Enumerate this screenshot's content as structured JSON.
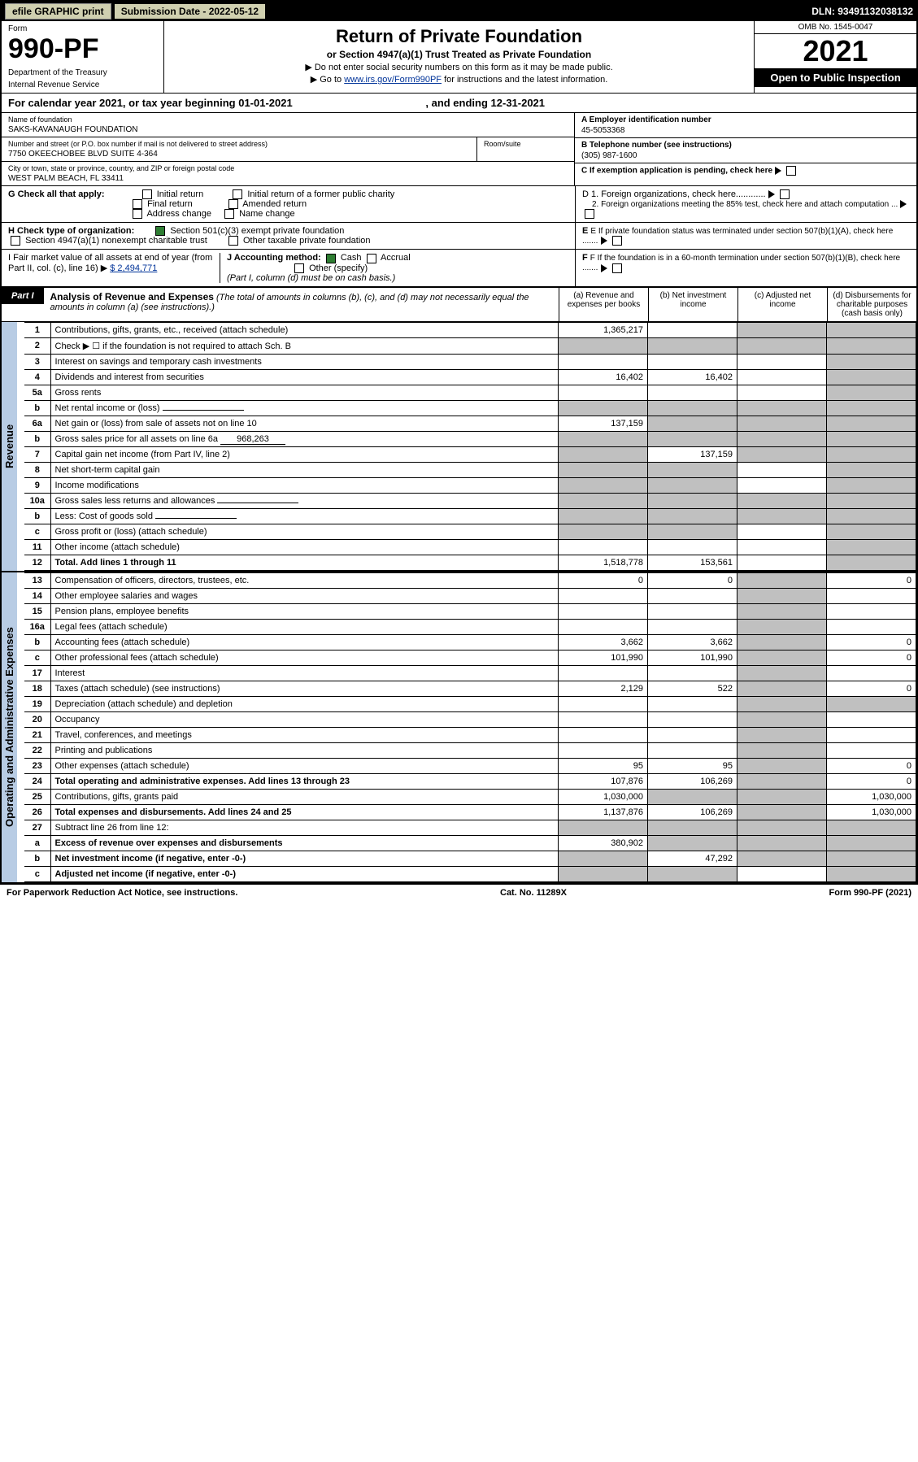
{
  "topbar": {
    "efile": "efile GRAPHIC print",
    "sub_label": "Submission Date - 2022-05-12",
    "dln": "DLN: 93491132038132"
  },
  "header": {
    "form_label": "Form",
    "form_number": "990-PF",
    "dept1": "Department of the Treasury",
    "dept2": "Internal Revenue Service",
    "title": "Return of Private Foundation",
    "subtitle": "or Section 4947(a)(1) Trust Treated as Private Foundation",
    "instr1": "▶ Do not enter social security numbers on this form as it may be made public.",
    "instr2a": "▶ Go to ",
    "instr2_link": "www.irs.gov/Form990PF",
    "instr2b": " for instructions and the latest information.",
    "omb": "OMB No. 1545-0047",
    "year": "2021",
    "open": "Open to Public Inspection"
  },
  "cal_year": {
    "text": "For calendar year 2021, or tax year beginning 01-01-2021",
    "end": ", and ending 12-31-2021"
  },
  "entity": {
    "name_label": "Name of foundation",
    "name": "SAKS-KAVANAUGH FOUNDATION",
    "addr_label": "Number and street (or P.O. box number if mail is not delivered to street address)",
    "addr": "7750 OKEECHOBEE BLVD SUITE 4-364",
    "room_label": "Room/suite",
    "city_label": "City or town, state or province, country, and ZIP or foreign postal code",
    "city": "WEST PALM BEACH, FL  33411",
    "ein_label": "A Employer identification number",
    "ein": "45-5053368",
    "phone_label": "B Telephone number (see instructions)",
    "phone": "(305) 987-1600",
    "c_label": "C If exemption application is pending, check here",
    "d1": "D 1. Foreign organizations, check here............",
    "d2": "2. Foreign organizations meeting the 85% test, check here and attach computation ...",
    "e_label": "E  If private foundation status was terminated under section 507(b)(1)(A), check here .......",
    "f_label": "F  If the foundation is in a 60-month termination under section 507(b)(1)(B), check here .......",
    "g_label": "G Check all that apply:",
    "g_initial": "Initial return",
    "g_initial_former": "Initial return of a former public charity",
    "g_final": "Final return",
    "g_amended": "Amended return",
    "g_addr_change": "Address change",
    "g_name_change": "Name change",
    "h_label": "H Check type of organization:",
    "h_501c3": "Section 501(c)(3) exempt private foundation",
    "h_4947": "Section 4947(a)(1) nonexempt charitable trust",
    "h_other_tax": "Other taxable private foundation",
    "i_label": "I Fair market value of all assets at end of year (from Part II, col. (c), line 16) ▶",
    "i_value": "$  2,494,771",
    "j_label": "J Accounting method:",
    "j_cash": "Cash",
    "j_accrual": "Accrual",
    "j_other": "Other (specify)",
    "j_note": "(Part I, column (d) must be on cash basis.)"
  },
  "part1": {
    "label": "Part I",
    "title": "Analysis of Revenue and Expenses",
    "title_note": " (The total of amounts in columns (b), (c), and (d) may not necessarily equal the amounts in column (a) (see instructions).)",
    "col_a": "(a)   Revenue and expenses per books",
    "col_b": "(b)   Net investment income",
    "col_c": "(c)   Adjusted net income",
    "col_d": "(d)   Disbursements for charitable purposes (cash basis only)"
  },
  "sides": {
    "revenue": "Revenue",
    "expenses": "Operating and Administrative Expenses"
  },
  "rows": [
    {
      "n": "1",
      "desc": "Contributions, gifts, grants, etc., received (attach schedule)",
      "a": "1,365,217",
      "b": "",
      "c": "grey",
      "d": "grey"
    },
    {
      "n": "2",
      "desc": "Check ▶ ☐ if the foundation is not required to attach Sch. B",
      "a": "grey",
      "b": "grey",
      "c": "grey",
      "d": "grey",
      "nobold": true
    },
    {
      "n": "3",
      "desc": "Interest on savings and temporary cash investments",
      "a": "",
      "b": "",
      "c": "",
      "d": "grey"
    },
    {
      "n": "4",
      "desc": "Dividends and interest from securities",
      "a": "16,402",
      "b": "16,402",
      "c": "",
      "d": "grey"
    },
    {
      "n": "5a",
      "desc": "Gross rents",
      "a": "",
      "b": "",
      "c": "",
      "d": "grey"
    },
    {
      "n": "b",
      "desc": "Net rental income or (loss)",
      "a": "grey",
      "b": "grey",
      "c": "grey",
      "d": "grey",
      "inline": true
    },
    {
      "n": "6a",
      "desc": "Net gain or (loss) from sale of assets not on line 10",
      "a": "137,159",
      "b": "grey",
      "c": "grey",
      "d": "grey"
    },
    {
      "n": "b",
      "desc": "Gross sales price for all assets on line 6a",
      "a": "grey",
      "b": "grey",
      "c": "grey",
      "d": "grey",
      "inline": true,
      "inlineval": "968,263"
    },
    {
      "n": "7",
      "desc": "Capital gain net income (from Part IV, line 2)",
      "a": "grey",
      "b": "137,159",
      "c": "grey",
      "d": "grey"
    },
    {
      "n": "8",
      "desc": "Net short-term capital gain",
      "a": "grey",
      "b": "grey",
      "c": "",
      "d": "grey"
    },
    {
      "n": "9",
      "desc": "Income modifications",
      "a": "grey",
      "b": "grey",
      "c": "",
      "d": "grey"
    },
    {
      "n": "10a",
      "desc": "Gross sales less returns and allowances",
      "a": "grey",
      "b": "grey",
      "c": "grey",
      "d": "grey",
      "inline": true
    },
    {
      "n": "b",
      "desc": "Less: Cost of goods sold",
      "a": "grey",
      "b": "grey",
      "c": "grey",
      "d": "grey",
      "inline": true
    },
    {
      "n": "c",
      "desc": "Gross profit or (loss) (attach schedule)",
      "a": "grey",
      "b": "grey",
      "c": "",
      "d": "grey"
    },
    {
      "n": "11",
      "desc": "Other income (attach schedule)",
      "a": "",
      "b": "",
      "c": "",
      "d": "grey"
    },
    {
      "n": "12",
      "desc": "Total. Add lines 1 through 11",
      "a": "1,518,778",
      "b": "153,561",
      "c": "",
      "d": "grey",
      "bold": true
    }
  ],
  "exp_rows": [
    {
      "n": "13",
      "desc": "Compensation of officers, directors, trustees, etc.",
      "a": "0",
      "b": "0",
      "c": "grey",
      "d": "0"
    },
    {
      "n": "14",
      "desc": "Other employee salaries and wages",
      "a": "",
      "b": "",
      "c": "grey",
      "d": ""
    },
    {
      "n": "15",
      "desc": "Pension plans, employee benefits",
      "a": "",
      "b": "",
      "c": "grey",
      "d": ""
    },
    {
      "n": "16a",
      "desc": "Legal fees (attach schedule)",
      "a": "",
      "b": "",
      "c": "grey",
      "d": ""
    },
    {
      "n": "b",
      "desc": "Accounting fees (attach schedule)",
      "a": "3,662",
      "b": "3,662",
      "c": "grey",
      "d": "0"
    },
    {
      "n": "c",
      "desc": "Other professional fees (attach schedule)",
      "a": "101,990",
      "b": "101,990",
      "c": "grey",
      "d": "0"
    },
    {
      "n": "17",
      "desc": "Interest",
      "a": "",
      "b": "",
      "c": "grey",
      "d": ""
    },
    {
      "n": "18",
      "desc": "Taxes (attach schedule) (see instructions)",
      "a": "2,129",
      "b": "522",
      "c": "grey",
      "d": "0"
    },
    {
      "n": "19",
      "desc": "Depreciation (attach schedule) and depletion",
      "a": "",
      "b": "",
      "c": "grey",
      "d": "grey"
    },
    {
      "n": "20",
      "desc": "Occupancy",
      "a": "",
      "b": "",
      "c": "grey",
      "d": ""
    },
    {
      "n": "21",
      "desc": "Travel, conferences, and meetings",
      "a": "",
      "b": "",
      "c": "grey",
      "d": ""
    },
    {
      "n": "22",
      "desc": "Printing and publications",
      "a": "",
      "b": "",
      "c": "grey",
      "d": ""
    },
    {
      "n": "23",
      "desc": "Other expenses (attach schedule)",
      "a": "95",
      "b": "95",
      "c": "grey",
      "d": "0"
    },
    {
      "n": "24",
      "desc": "Total operating and administrative expenses. Add lines 13 through 23",
      "a": "107,876",
      "b": "106,269",
      "c": "grey",
      "d": "0",
      "bold": true
    },
    {
      "n": "25",
      "desc": "Contributions, gifts, grants paid",
      "a": "1,030,000",
      "b": "grey",
      "c": "grey",
      "d": "1,030,000"
    },
    {
      "n": "26",
      "desc": "Total expenses and disbursements. Add lines 24 and 25",
      "a": "1,137,876",
      "b": "106,269",
      "c": "grey",
      "d": "1,030,000",
      "bold": true
    },
    {
      "n": "27",
      "desc": "Subtract line 26 from line 12:",
      "a": "grey",
      "b": "grey",
      "c": "grey",
      "d": "grey"
    },
    {
      "n": "a",
      "desc": "Excess of revenue over expenses and disbursements",
      "a": "380,902",
      "b": "grey",
      "c": "grey",
      "d": "grey",
      "bold": true
    },
    {
      "n": "b",
      "desc": "Net investment income (if negative, enter -0-)",
      "a": "grey",
      "b": "47,292",
      "c": "grey",
      "d": "grey",
      "bold": true
    },
    {
      "n": "c",
      "desc": "Adjusted net income (if negative, enter -0-)",
      "a": "grey",
      "b": "grey",
      "c": "",
      "d": "grey",
      "bold": true
    }
  ],
  "footer": {
    "left": "For Paperwork Reduction Act Notice, see instructions.",
    "mid": "Cat. No. 11289X",
    "right": "Form 990-PF (2021)"
  },
  "colors": {
    "side_bg": "#b8cce4",
    "grey_cell": "#c0c0c0",
    "check_green": "#2e7d32",
    "link": "#003399"
  }
}
